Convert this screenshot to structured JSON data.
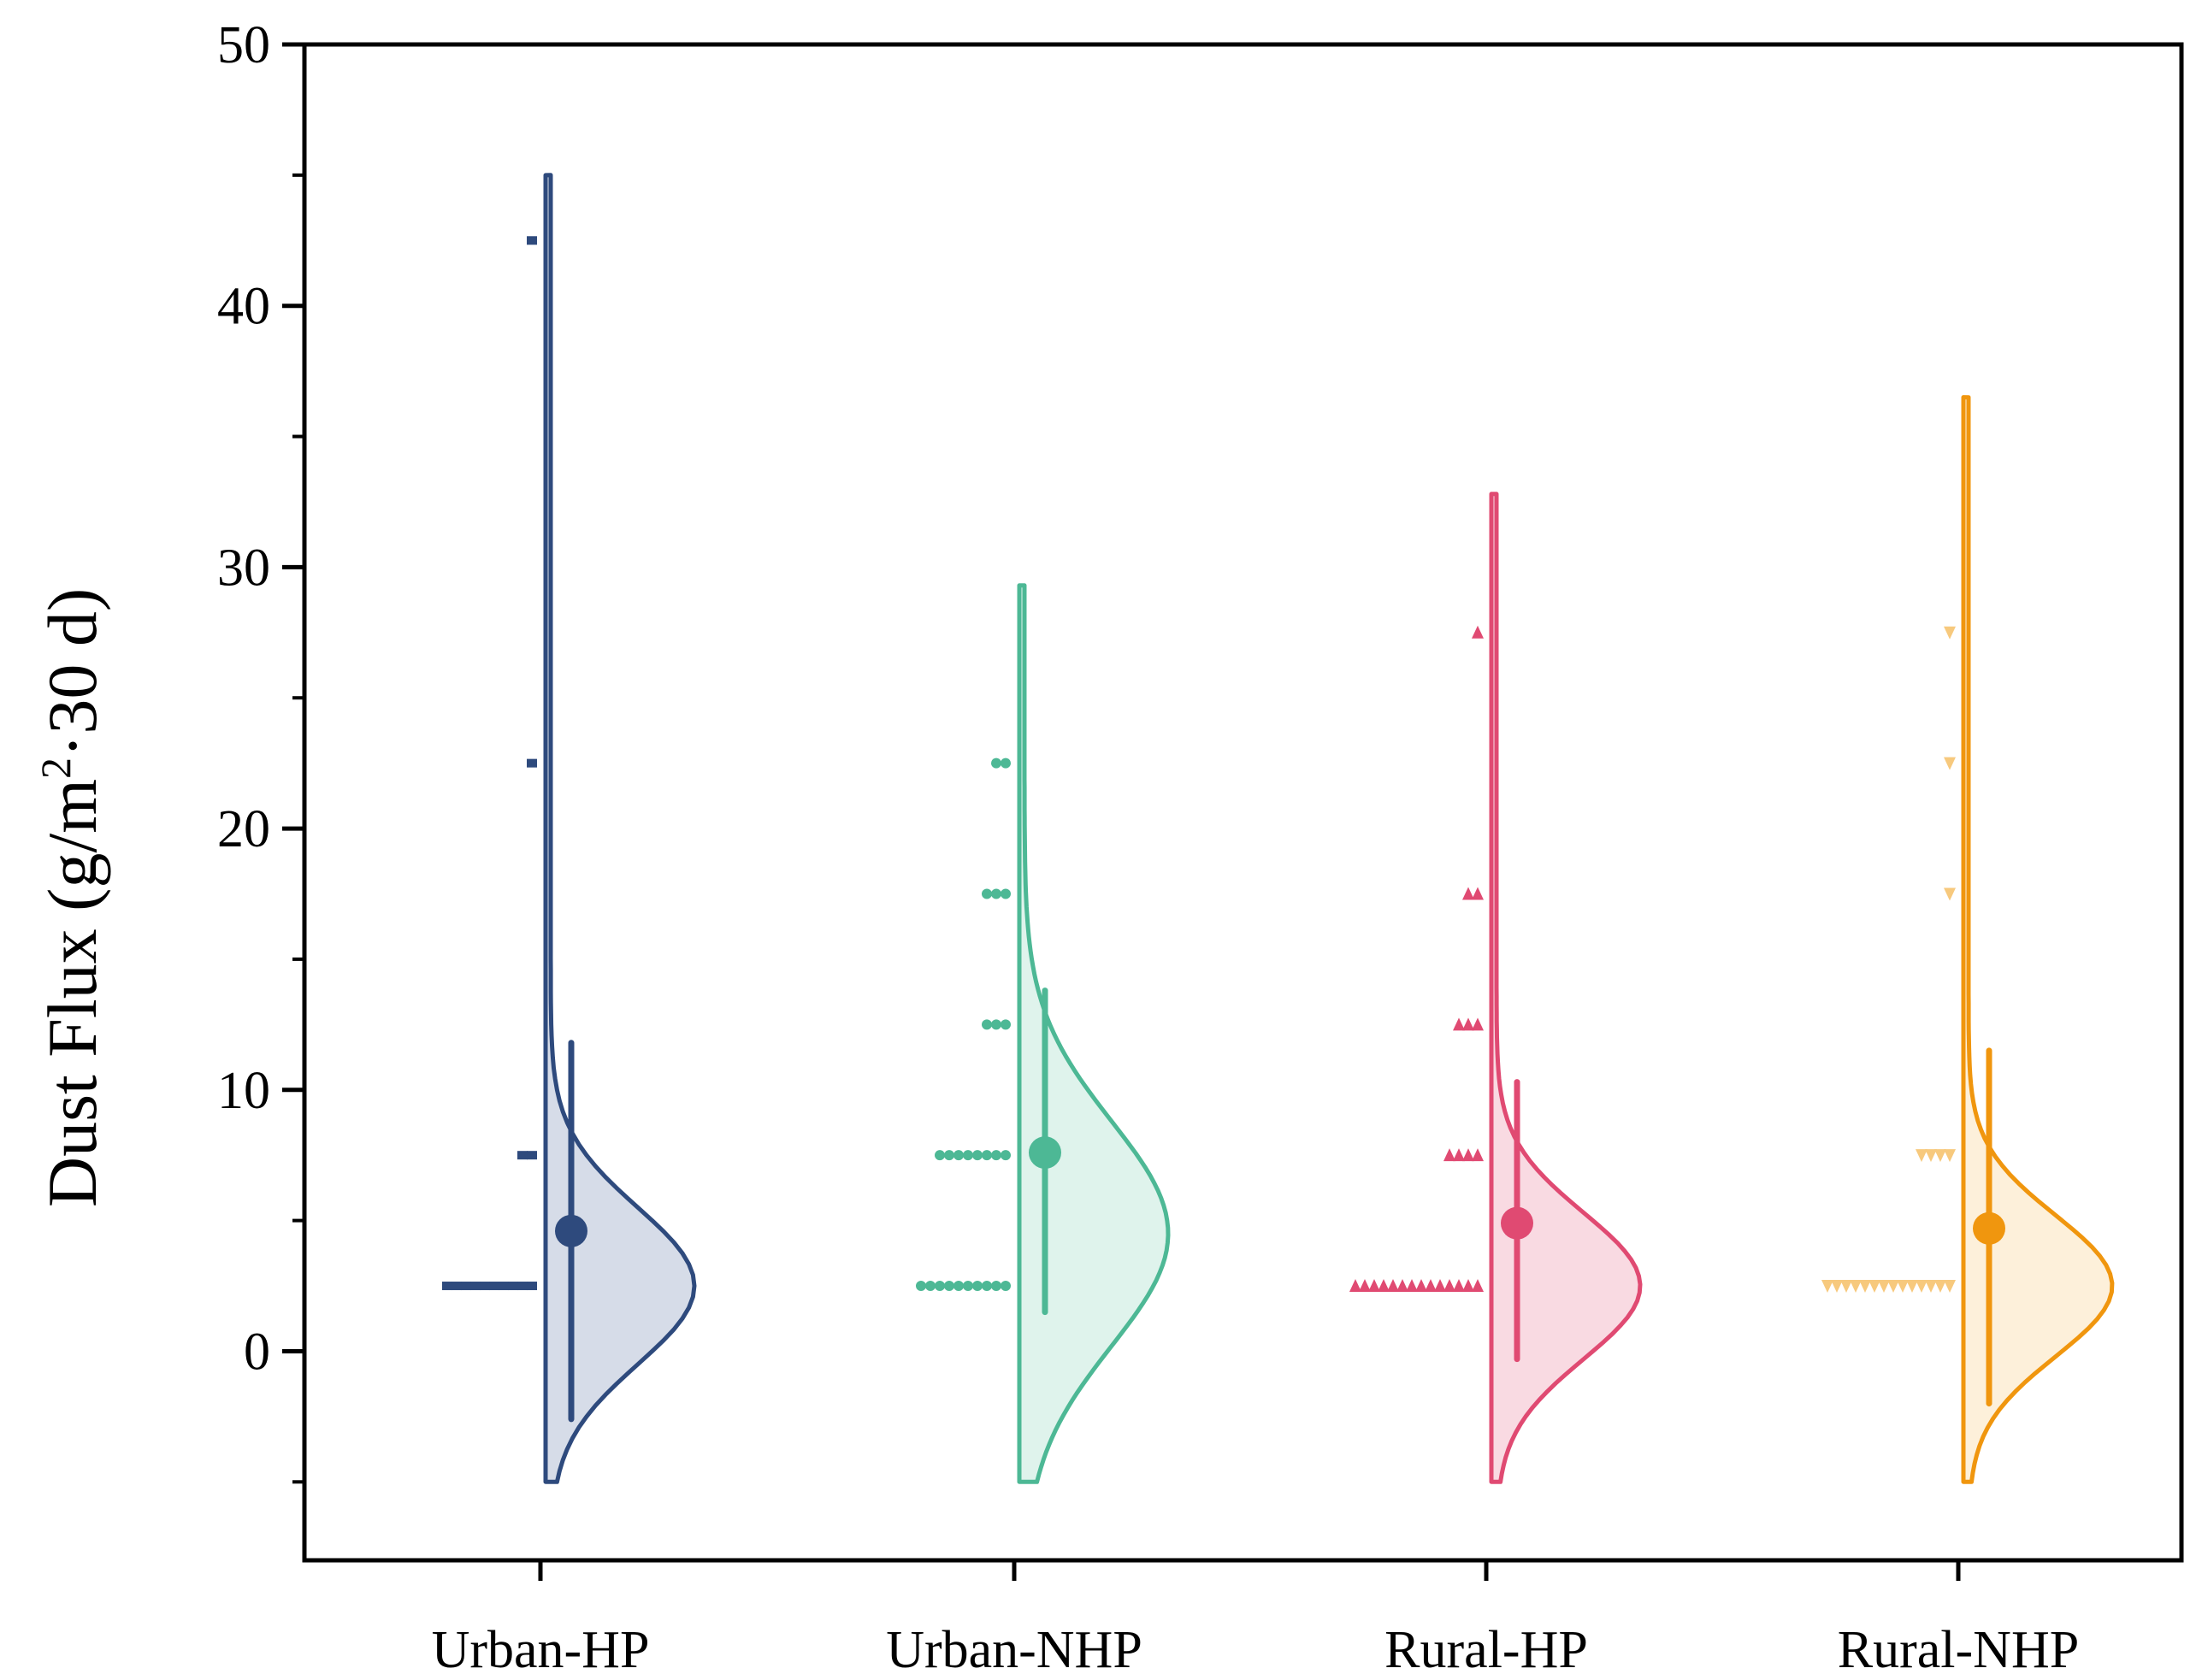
{
  "chart_data": {
    "type": "violin",
    "title": "",
    "xlabel": "",
    "ylabel_parts": [
      "Dust Flux (g/m",
      "2",
      "·30 d)"
    ],
    "ylim": [
      -8,
      50
    ],
    "yticks": [
      0,
      10,
      20,
      30,
      40,
      50
    ],
    "yminor": [
      -5,
      5,
      15,
      25,
      35,
      45
    ],
    "categories": [
      "Urban-HP",
      "Urban-NHP",
      "Rural-HP",
      "Rural-NHP"
    ],
    "grid": false,
    "legend": "none",
    "series": [
      {
        "category": "Urban-HP",
        "color": "#2e4a7d",
        "fill": "#d6dce8",
        "marker": "dash",
        "mean": 4.6,
        "whisker": [
          -2.6,
          11.8
        ],
        "violin_range": [
          -5,
          45
        ],
        "violin_peak": 2.5,
        "violin_sd": 3.0,
        "points": [
          {
            "y": 2.5,
            "count": 10
          },
          {
            "y": 7.5,
            "count": 2
          },
          {
            "y": 22.5,
            "count": 1
          },
          {
            "y": 42.5,
            "count": 1
          }
        ]
      },
      {
        "category": "Urban-NHP",
        "color": "#4db895",
        "fill": "#dff3ec",
        "marker": "circle",
        "mean": 7.6,
        "whisker": [
          1.5,
          13.8
        ],
        "violin_range": [
          -5,
          29.3
        ],
        "violin_peak": 4.5,
        "violin_sd": 4.3,
        "points": [
          {
            "y": 2.5,
            "count": 10
          },
          {
            "y": 7.5,
            "count": 8
          },
          {
            "y": 12.5,
            "count": 3
          },
          {
            "y": 17.5,
            "count": 3
          },
          {
            "y": 22.5,
            "count": 2
          }
        ]
      },
      {
        "category": "Rural-HP",
        "color": "#e04a72",
        "fill": "#f9dae2",
        "marker": "triangle-up",
        "mean": 4.9,
        "whisker": [
          -0.3,
          10.3
        ],
        "violin_range": [
          -5,
          32.8
        ],
        "violin_peak": 2.5,
        "violin_sd": 2.8,
        "points": [
          {
            "y": 2.5,
            "count": 14
          },
          {
            "y": 7.5,
            "count": 4
          },
          {
            "y": 12.5,
            "count": 3
          },
          {
            "y": 17.5,
            "count": 2
          },
          {
            "y": 27.5,
            "count": 1
          }
        ]
      },
      {
        "category": "Rural-NHP",
        "color": "#f0960e",
        "fill": "#fdf0da",
        "marker": "triangle-down",
        "mean": 4.7,
        "whisker": [
          -2.0,
          11.5
        ],
        "violin_range": [
          -5,
          36.5
        ],
        "violin_peak": 2.5,
        "violin_sd": 2.7,
        "points": [
          {
            "y": 2.5,
            "count": 14
          },
          {
            "y": 7.5,
            "count": 4
          },
          {
            "y": 17.5,
            "count": 1
          },
          {
            "y": 22.5,
            "count": 1
          },
          {
            "y": 27.5,
            "count": 1
          }
        ]
      }
    ]
  }
}
